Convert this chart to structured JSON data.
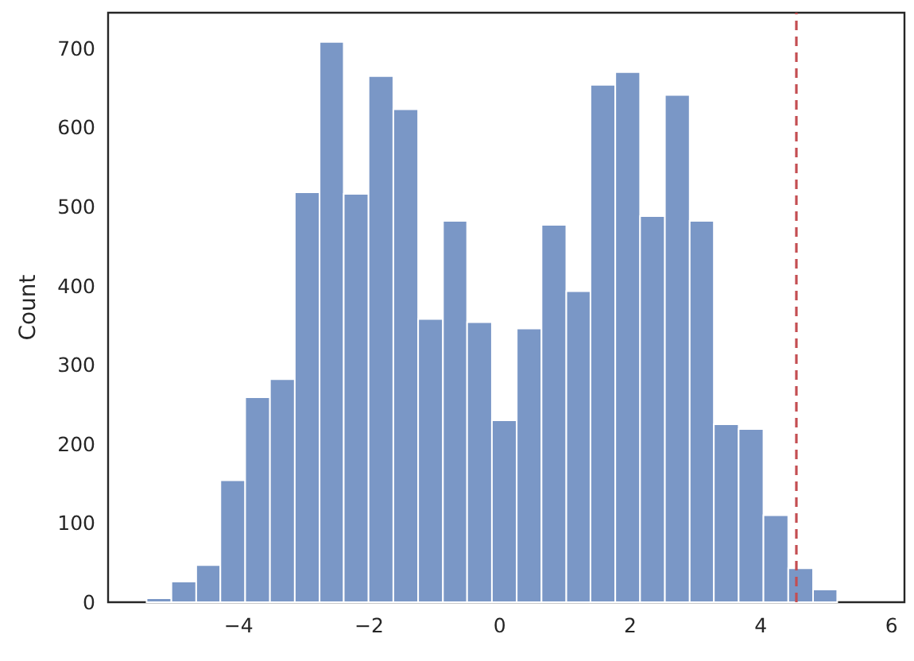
{
  "chart_data": {
    "type": "histogram",
    "ylabel": "Count",
    "color": "#7a97c6",
    "bins": [
      -5.41,
      -5.03,
      -4.65,
      -4.28,
      -3.9,
      -3.52,
      -3.14,
      -2.76,
      -2.39,
      -2.01,
      -1.63,
      -1.25,
      -0.87,
      -0.5,
      -0.12,
      0.26,
      0.64,
      1.02,
      1.39,
      1.77,
      2.15,
      2.53,
      2.91,
      3.28,
      3.66,
      4.04,
      4.42,
      4.8,
      5.17
    ],
    "values": [
      5,
      26,
      47,
      154,
      259,
      282,
      518,
      708,
      516,
      665,
      623,
      358,
      482,
      354,
      230,
      346,
      477,
      393,
      654,
      670,
      488,
      641,
      482,
      225,
      219,
      110,
      43,
      16
    ],
    "xlim": [
      -6.0,
      6.2
    ],
    "xticks": [
      {
        "value": -4,
        "label": "−4"
      },
      {
        "value": -2,
        "label": "−2"
      },
      0,
      2,
      4,
      6
    ],
    "ylim": [
      0,
      745
    ],
    "yticks": [
      0,
      100,
      200,
      300,
      400,
      500,
      600,
      700
    ],
    "ref_lines": [
      {
        "axis": "x",
        "value": 4.55,
        "color": "#c44e52",
        "line_style": "dashed"
      }
    ],
    "grid": false
  }
}
